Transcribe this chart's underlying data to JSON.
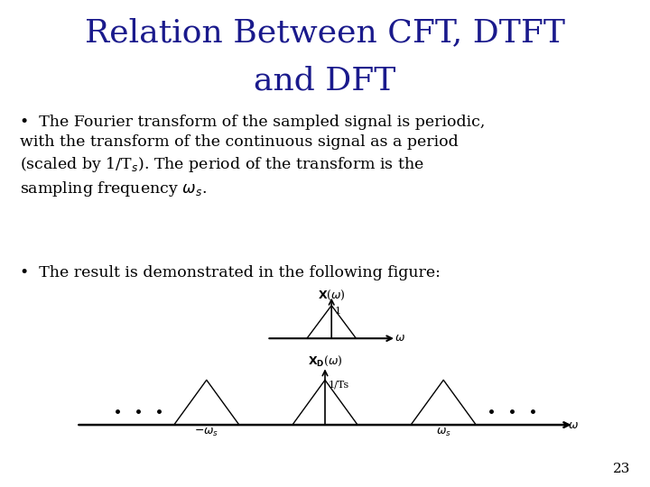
{
  "title_line1": "Relation Between CFT, DTFT",
  "title_line2": "and DFT",
  "title_color": "#1a1a8c",
  "title_fontsize": 26,
  "background_color": "#ffffff",
  "text_color": "#000000",
  "text_fontsize": 12.5,
  "page_number": "23"
}
